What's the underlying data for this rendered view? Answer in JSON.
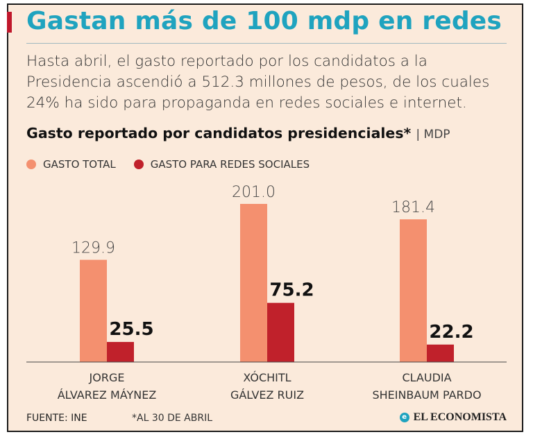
{
  "header": {
    "title": "Gastan más de 100 mdp en redes",
    "intro": "Hasta abril, el gasto reportado por los candidatos a la Presidencia ascendió a 512.3 millones de pesos, de los cuales 24% ha sido para propaganda en redes sociales e internet."
  },
  "chart_heading": {
    "title": "Gasto reportado por candidatos presidenciales*",
    "unit": "| MDP"
  },
  "footer": {
    "source": "FUENTE: INE",
    "note": "*AL 30 DE ABRIL",
    "brand": "EL ECONOMISTA"
  },
  "colors": {
    "title": "#1fa3bf",
    "gasto_total": "#f4906f",
    "gasto_redes": "#c0212b",
    "background": "#fbeadb"
  },
  "chart_data": {
    "type": "bar",
    "categories": [
      [
        "JORGE",
        "ÁLVAREZ MÁYNEZ"
      ],
      [
        "XÓCHITL",
        "GÁLVEZ RUIZ"
      ],
      [
        "CLAUDIA",
        "SHEINBAUM PARDO"
      ]
    ],
    "series": [
      {
        "name": "GASTO TOTAL",
        "values": [
          129.9,
          201.0,
          181.4
        ],
        "labels": [
          "129.9",
          "201.0",
          "181.4"
        ],
        "color": "#f4906f"
      },
      {
        "name": "GASTO PARA REDES SOCIALES",
        "values": [
          25.5,
          75.2,
          22.2
        ],
        "labels": [
          "25.5",
          "75.2",
          "22.2"
        ],
        "color": "#c0212b"
      }
    ],
    "ylim": [
      0,
      201.0
    ],
    "grid": false,
    "legend": "top-left"
  }
}
